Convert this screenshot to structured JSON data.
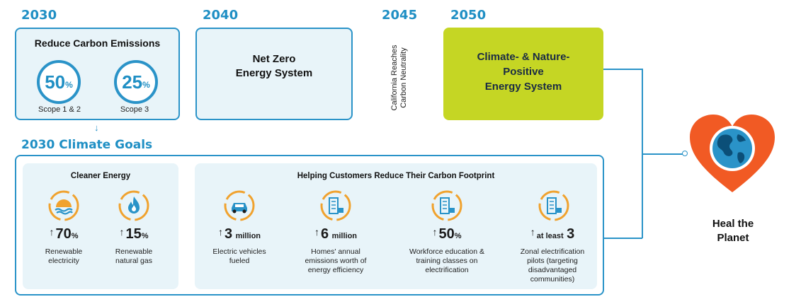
{
  "timeline": {
    "y2030": "2030",
    "y2040": "2040",
    "y2045": "2045",
    "y2050": "2050"
  },
  "reduce": {
    "title": "Reduce Carbon Emissions",
    "scope12": {
      "value": "50",
      "unit": "%",
      "label": "Scope 1 & 2"
    },
    "scope3": {
      "value": "25",
      "unit": "%",
      "label": "Scope 3"
    }
  },
  "net_zero": {
    "line1": "Net Zero",
    "line2": "Energy System"
  },
  "neutrality": {
    "line1": "California Reaches",
    "line2": "Carbon Neutrality"
  },
  "positive": {
    "line1": "Climate- & Nature-",
    "line2": "Positive",
    "line3": "Energy System"
  },
  "climate_goals": {
    "title": "2030 Climate Goals",
    "cleaner": {
      "title": "Cleaner Energy",
      "items": [
        {
          "arrow": "↑",
          "value": "70",
          "unit": "%",
          "line1": "Renewable",
          "line2": "electricity"
        },
        {
          "arrow": "↑",
          "value": "15",
          "unit": "%",
          "line1": "Renewable",
          "line2": "natural gas"
        }
      ]
    },
    "customers": {
      "title": "Helping Customers Reduce Their Carbon Footprint",
      "items": [
        {
          "arrow": "↑",
          "prefix": "",
          "value": "3",
          "unit": "million",
          "lines": [
            "Electric vehicles",
            "fueled"
          ]
        },
        {
          "arrow": "↑",
          "prefix": "",
          "value": "6",
          "unit": "million",
          "lines": [
            "Homes' annual",
            "emissions worth of",
            "energy efficiency"
          ]
        },
        {
          "arrow": "↑",
          "prefix": "",
          "value": "50",
          "unit": "%",
          "lines": [
            "Workforce education &",
            "training classes on",
            "electrification"
          ]
        },
        {
          "arrow": "↑",
          "prefix": "at least",
          "value": "3",
          "unit": "",
          "lines": [
            "Zonal electrification",
            "pilots (targeting",
            "disadvantaged",
            "communities)"
          ]
        }
      ]
    }
  },
  "down_arrow": "↓",
  "heal": {
    "line1": "Heal the",
    "line2": "Planet"
  },
  "colors": {
    "blue": "#2a93c8",
    "lime": "#c5d624",
    "orange": "#f0a22e",
    "heart": "#f15a24"
  },
  "icons": [
    "sun-water-icon",
    "flame-icon",
    "car-icon",
    "building-icon",
    "heart-globe-icon"
  ]
}
